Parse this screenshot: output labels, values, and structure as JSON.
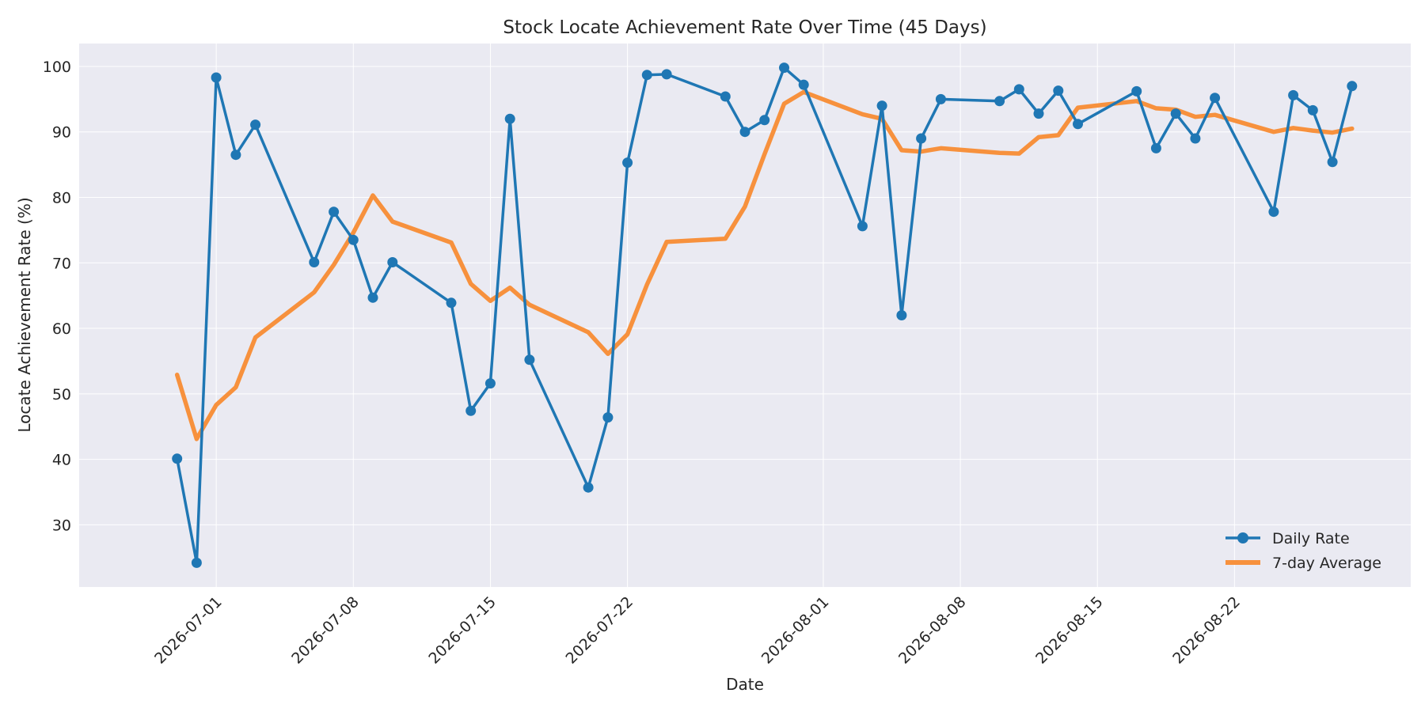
{
  "chart_data": {
    "type": "line",
    "title": "Stock Locate Achievement Rate Over Time (45 Days)",
    "xlabel": "Date",
    "ylabel": "Locate Achievement Rate (%)",
    "xlim": [
      "2026-06-24",
      "2026-08-31"
    ],
    "ylim": [
      20.5,
      103.5
    ],
    "x_ticks": [
      "2026-07-01",
      "2026-07-08",
      "2026-07-15",
      "2026-07-22",
      "2026-08-01",
      "2026-08-08",
      "2026-08-15",
      "2026-08-22"
    ],
    "y_ticks": [
      30,
      40,
      50,
      60,
      70,
      80,
      90,
      100
    ],
    "grid": true,
    "legend_position": "bottom-right",
    "colors": {
      "plot_background": "#eaeaf2",
      "grid": "#ffffff",
      "daily": "#1f77b4",
      "average": "#f7913d"
    },
    "series": [
      {
        "name": "Daily Rate",
        "marker": "circle",
        "x": [
          "2026-06-29",
          "2026-06-30",
          "2026-07-01",
          "2026-07-02",
          "2026-07-03",
          "2026-07-06",
          "2026-07-07",
          "2026-07-08",
          "2026-07-09",
          "2026-07-10",
          "2026-07-13",
          "2026-07-14",
          "2026-07-15",
          "2026-07-16",
          "2026-07-17",
          "2026-07-20",
          "2026-07-21",
          "2026-07-22",
          "2026-07-23",
          "2026-07-24",
          "2026-07-27",
          "2026-07-28",
          "2026-07-29",
          "2026-07-30",
          "2026-07-31",
          "2026-08-03",
          "2026-08-04",
          "2026-08-05",
          "2026-08-06",
          "2026-08-07",
          "2026-08-10",
          "2026-08-11",
          "2026-08-12",
          "2026-08-13",
          "2026-08-14",
          "2026-08-17",
          "2026-08-18",
          "2026-08-19",
          "2026-08-20",
          "2026-08-21",
          "2026-08-24",
          "2026-08-25",
          "2026-08-26",
          "2026-08-27",
          "2026-08-28"
        ],
        "values": [
          40.1,
          24.2,
          98.3,
          86.5,
          91.1,
          70.1,
          77.8,
          73.5,
          64.7,
          70.1,
          63.9,
          47.4,
          51.6,
          92.0,
          55.2,
          35.7,
          46.4,
          85.3,
          98.7,
          98.8,
          95.4,
          90.0,
          91.8,
          99.8,
          97.2,
          75.6,
          94.0,
          62.0,
          89.0,
          95.0,
          94.7,
          96.5,
          92.8,
          96.3,
          91.2,
          96.2,
          87.5,
          92.8,
          89.0,
          95.2,
          77.8,
          95.6,
          93.3,
          85.4,
          97.0
        ]
      },
      {
        "name": "7-day Average",
        "x": [
          "2026-06-29",
          "2026-06-30",
          "2026-07-01",
          "2026-07-02",
          "2026-07-03",
          "2026-07-06",
          "2026-07-07",
          "2026-07-08",
          "2026-07-09",
          "2026-07-10",
          "2026-07-13",
          "2026-07-14",
          "2026-07-15",
          "2026-07-16",
          "2026-07-17",
          "2026-07-20",
          "2026-07-21",
          "2026-07-22",
          "2026-07-23",
          "2026-07-24",
          "2026-07-27",
          "2026-07-28",
          "2026-07-29",
          "2026-07-30",
          "2026-07-31",
          "2026-08-03",
          "2026-08-04",
          "2026-08-05",
          "2026-08-06",
          "2026-08-07",
          "2026-08-10",
          "2026-08-11",
          "2026-08-12",
          "2026-08-13",
          "2026-08-14",
          "2026-08-17",
          "2026-08-18",
          "2026-08-19",
          "2026-08-20",
          "2026-08-21",
          "2026-08-24",
          "2026-08-25",
          "2026-08-26",
          "2026-08-27",
          "2026-08-28"
        ],
        "values": [
          52.9,
          43.1,
          48.3,
          51.0,
          58.6,
          65.5,
          69.7,
          74.6,
          80.3,
          76.3,
          73.1,
          66.8,
          64.2,
          66.2,
          63.6,
          59.4,
          56.1,
          59.1,
          66.7,
          73.2,
          73.7,
          78.6,
          86.6,
          94.3,
          96.1,
          92.7,
          92.0,
          87.2,
          87.0,
          87.5,
          86.8,
          86.7,
          89.2,
          89.5,
          93.7,
          94.7,
          93.6,
          93.4,
          92.3,
          92.6,
          90.0,
          90.6,
          90.2,
          89.9,
          90.5
        ]
      }
    ]
  }
}
